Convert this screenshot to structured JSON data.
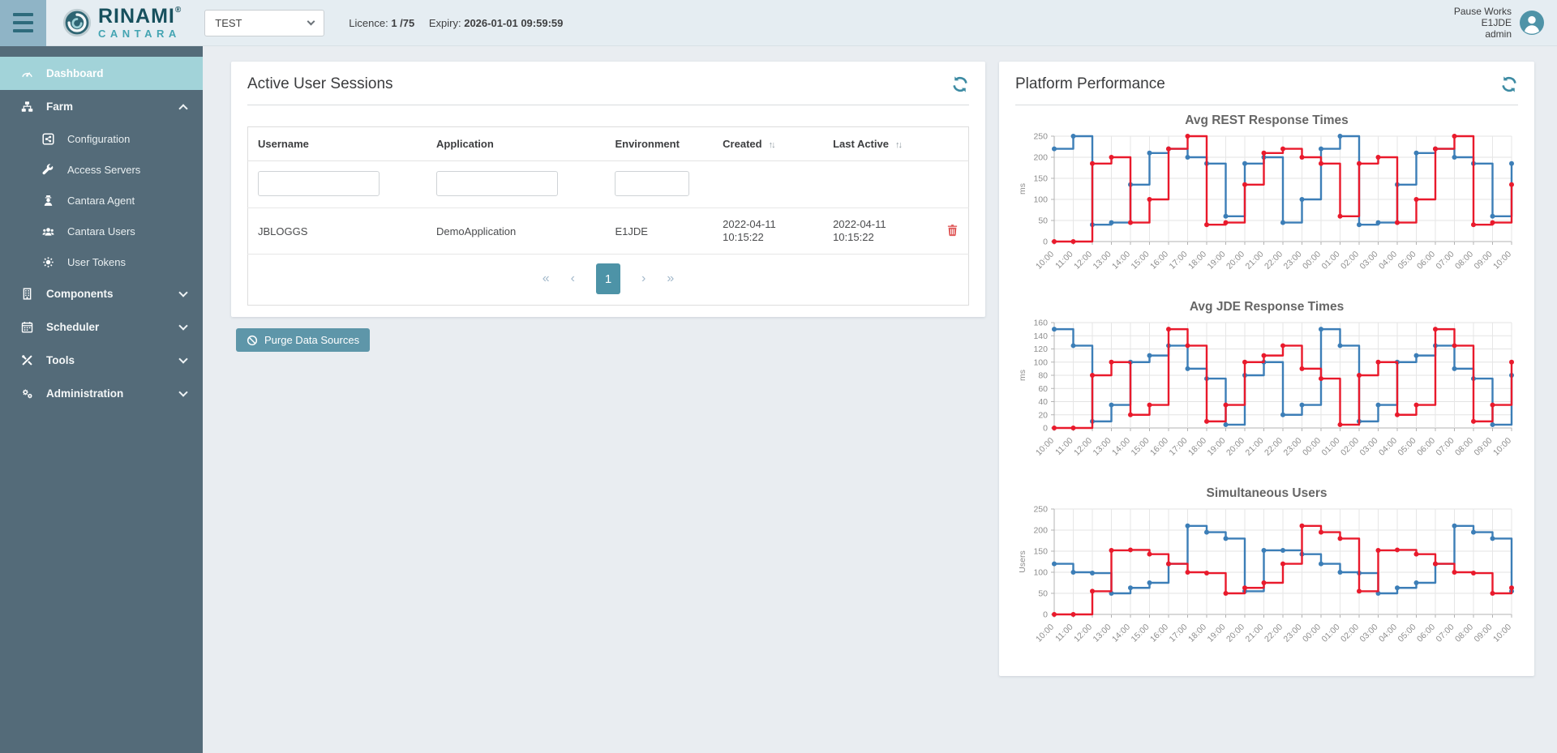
{
  "header": {
    "brand": {
      "name": "RINAMI",
      "registered": "®",
      "sub": "CANTARA"
    },
    "environment_select": {
      "value": "TEST"
    },
    "licence_label": "Licence:",
    "licence_value": "1 /75",
    "expiry_label": "Expiry:",
    "expiry_value": "2026-01-01 09:59:59",
    "user": {
      "line1": "Pause Works",
      "line2": "E1JDE",
      "line3": "admin"
    }
  },
  "sidebar": {
    "items": [
      {
        "id": "dashboard",
        "label": "Dashboard",
        "icon": "gauge",
        "level": 0,
        "active": true
      },
      {
        "id": "farm",
        "label": "Farm",
        "icon": "sitemap",
        "level": 0,
        "caret": "up"
      },
      {
        "id": "configuration",
        "label": "Configuration",
        "icon": "share-square",
        "level": 1
      },
      {
        "id": "access-servers",
        "label": "Access Servers",
        "icon": "wrench",
        "level": 1
      },
      {
        "id": "cantara-agent",
        "label": "Cantara Agent",
        "icon": "agent",
        "level": 1
      },
      {
        "id": "cantara-users",
        "label": "Cantara Users",
        "icon": "users",
        "level": 1
      },
      {
        "id": "user-tokens",
        "label": "User Tokens",
        "icon": "token",
        "level": 1
      },
      {
        "id": "components",
        "label": "Components",
        "icon": "building",
        "level": 0,
        "caret": "down"
      },
      {
        "id": "scheduler",
        "label": "Scheduler",
        "icon": "calendar",
        "level": 0,
        "caret": "down"
      },
      {
        "id": "tools",
        "label": "Tools",
        "icon": "tools",
        "level": 0,
        "caret": "down"
      },
      {
        "id": "administration",
        "label": "Administration",
        "icon": "cogs",
        "level": 0,
        "caret": "down"
      }
    ]
  },
  "sessions_panel": {
    "title": "Active User Sessions",
    "columns": [
      "Username",
      "Application",
      "Environment",
      "Created",
      "Last Active"
    ],
    "sort_icon": "↑↓",
    "rows": [
      {
        "username": "JBLOGGS",
        "application": "DemoApplication",
        "environment": "E1JDE",
        "created_date": "2022-04-11",
        "created_time": "10:15:22",
        "last_active_date": "2022-04-11",
        "last_active_time": "10:15:22"
      }
    ],
    "pagination": {
      "first": "«",
      "prev": "‹",
      "page": "1",
      "next": "›",
      "last": "»"
    },
    "purge_button": "Purge Data Sources"
  },
  "performance_panel": {
    "title": "Platform Performance"
  },
  "colors": {
    "accent_teal": "#4d93a7",
    "sidebar": "#546b79",
    "active_item": "#a2d3d9",
    "chart_blue": "#3c7eb7",
    "chart_red": "#e91a2c",
    "danger": "#e05b5b"
  },
  "chart_data": [
    {
      "type": "line",
      "step": true,
      "title": "Avg REST Response Times",
      "xlabel": "",
      "ylabel": "ms",
      "ylim": [
        0,
        250
      ],
      "yticks": [
        0,
        50,
        100,
        150,
        200,
        250
      ],
      "grid": true,
      "legend": false,
      "x": [
        "10:00",
        "11:00",
        "12:00",
        "13:00",
        "14:00",
        "15:00",
        "16:00",
        "17:00",
        "18:00",
        "19:00",
        "20:00",
        "21:00",
        "22:00",
        "23:00",
        "00:00",
        "01:00",
        "02:00",
        "03:00",
        "04:00",
        "05:00",
        "06:00",
        "07:00",
        "08:00",
        "09:00",
        "10:00"
      ],
      "series": [
        {
          "name": "series-blue",
          "color": "#3c7eb7",
          "values": [
            220,
            250,
            40,
            45,
            135,
            210,
            220,
            200,
            185,
            60,
            185,
            200,
            45,
            100,
            220,
            250,
            40,
            45,
            135,
            210,
            220,
            200,
            185,
            60,
            185
          ]
        },
        {
          "name": "series-red",
          "color": "#e91a2c",
          "values": [
            0,
            0,
            185,
            200,
            45,
            100,
            220,
            250,
            40,
            45,
            135,
            210,
            220,
            200,
            185,
            60,
            185,
            200,
            45,
            100,
            220,
            250,
            40,
            45,
            135
          ]
        }
      ]
    },
    {
      "type": "line",
      "step": true,
      "title": "Avg JDE Response Times",
      "xlabel": "",
      "ylabel": "ms",
      "ylim": [
        0,
        160
      ],
      "yticks": [
        0,
        20,
        40,
        60,
        80,
        100,
        120,
        140,
        160
      ],
      "grid": true,
      "legend": false,
      "x": [
        "10:00",
        "11:00",
        "12:00",
        "13:00",
        "14:00",
        "15:00",
        "16:00",
        "17:00",
        "18:00",
        "19:00",
        "20:00",
        "21:00",
        "22:00",
        "23:00",
        "00:00",
        "01:00",
        "02:00",
        "03:00",
        "04:00",
        "05:00",
        "06:00",
        "07:00",
        "08:00",
        "09:00",
        "10:00"
      ],
      "series": [
        {
          "name": "series-blue",
          "color": "#3c7eb7",
          "values": [
            150,
            125,
            10,
            35,
            100,
            110,
            125,
            90,
            75,
            5,
            80,
            100,
            20,
            35,
            150,
            125,
            10,
            35,
            100,
            110,
            125,
            90,
            75,
            5,
            80
          ]
        },
        {
          "name": "series-red",
          "color": "#e91a2c",
          "values": [
            0,
            0,
            80,
            100,
            20,
            35,
            150,
            125,
            10,
            35,
            100,
            110,
            125,
            90,
            75,
            5,
            80,
            100,
            20,
            35,
            150,
            125,
            10,
            35,
            100
          ]
        }
      ]
    },
    {
      "type": "line",
      "step": true,
      "title": "Simultaneous Users",
      "xlabel": "",
      "ylabel": "Users",
      "ylim": [
        0,
        250
      ],
      "yticks": [
        0,
        50,
        100,
        150,
        200,
        250
      ],
      "grid": true,
      "legend": false,
      "x": [
        "10:00",
        "11:00",
        "12:00",
        "13:00",
        "14:00",
        "15:00",
        "16:00",
        "17:00",
        "18:00",
        "19:00",
        "20:00",
        "21:00",
        "22:00",
        "23:00",
        "00:00",
        "01:00",
        "02:00",
        "03:00",
        "04:00",
        "05:00",
        "06:00",
        "07:00",
        "08:00",
        "09:00",
        "10:00"
      ],
      "series": [
        {
          "name": "series-blue",
          "color": "#3c7eb7",
          "values": [
            120,
            100,
            98,
            50,
            63,
            75,
            120,
            210,
            195,
            180,
            55,
            152,
            152,
            143,
            120,
            100,
            98,
            50,
            63,
            75,
            120,
            210,
            195,
            180,
            55
          ]
        },
        {
          "name": "series-red",
          "color": "#e91a2c",
          "values": [
            0,
            0,
            55,
            152,
            153,
            143,
            120,
            100,
            98,
            50,
            63,
            75,
            120,
            210,
            195,
            180,
            55,
            152,
            153,
            143,
            120,
            100,
            98,
            50,
            63
          ]
        }
      ]
    }
  ]
}
